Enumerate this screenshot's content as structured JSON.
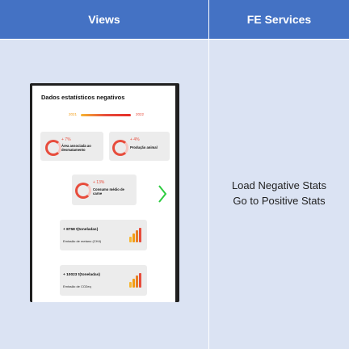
{
  "header": {
    "views_label": "Views",
    "fe_label": "FE Services"
  },
  "fe_services": {
    "line1": "Load Negative Stats",
    "line2": "Go to Positive Stats"
  },
  "phone": {
    "title": "Dados estatísticos negativos",
    "year_start": "2021",
    "year_end": "2022",
    "cards": [
      {
        "pct": "+ 7%",
        "label": "Área associada ao desmatamento"
      },
      {
        "pct": "+ 4%",
        "label": "Produção animal"
      },
      {
        "pct": "+ 13%",
        "label": "Consumo médio de carne"
      }
    ],
    "stats": [
      {
        "value": "+ 8758 t(toneladas)",
        "label": "Emissão de metano (CH4)"
      },
      {
        "value": "+ 10023 t(toneladas)",
        "label": "Emissão de CO2eq"
      }
    ]
  },
  "colors": {
    "header_bg": "#4472c4",
    "cell_bg": "#dbe3f3",
    "accent_red": "#e74c3c",
    "accent_orange": "#f39c12",
    "chevron_green": "#2ecc40"
  },
  "icons": [
    "ring-chart-icon",
    "bar-chart-icon",
    "chevron-right-icon"
  ]
}
